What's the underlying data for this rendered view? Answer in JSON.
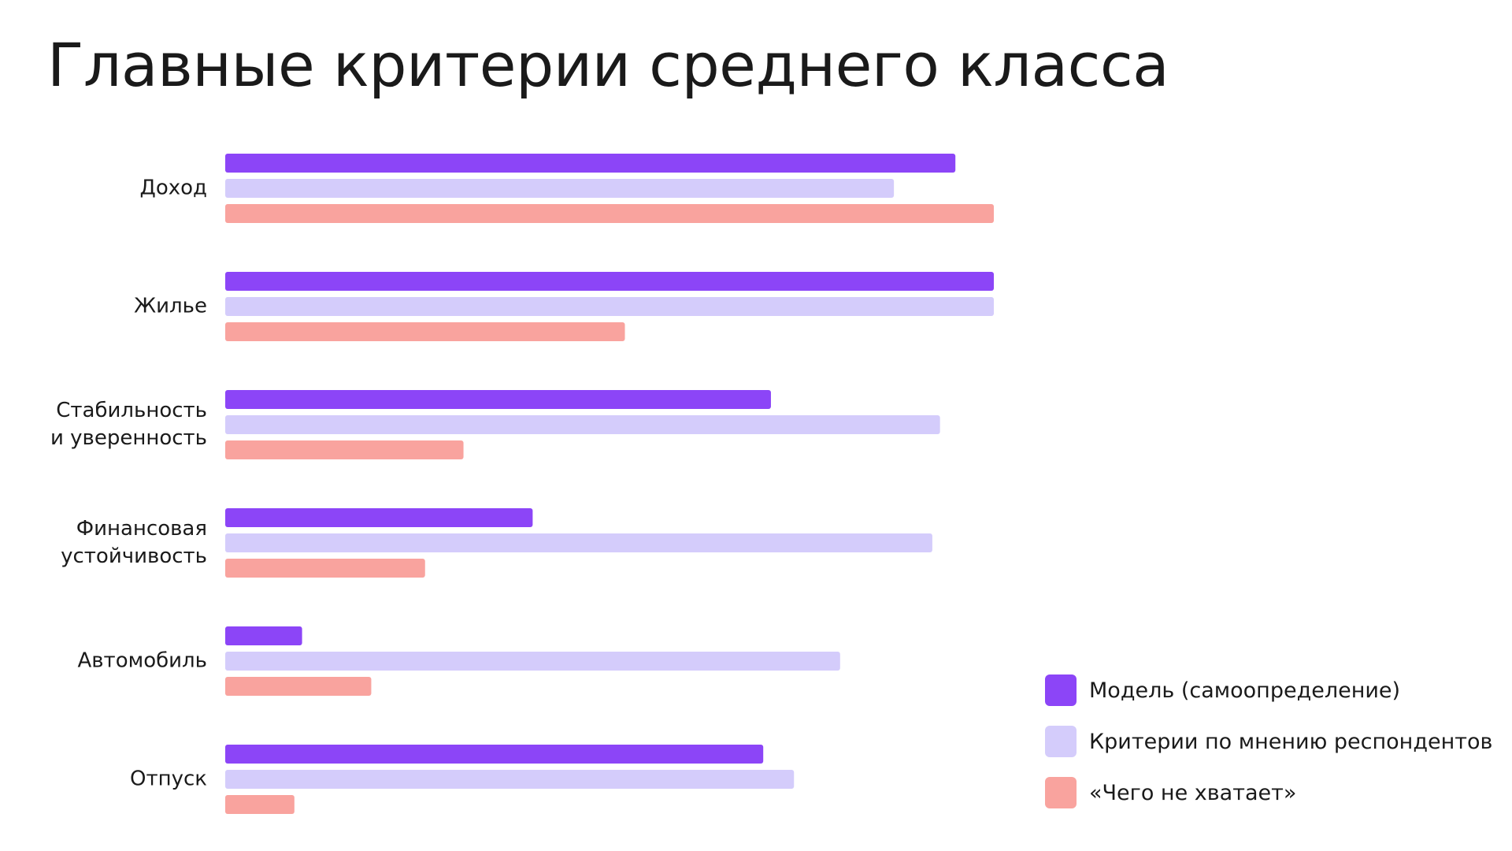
{
  "title": "Главные критерии среднего класса",
  "chart_data": {
    "type": "bar",
    "orientation": "horizontal",
    "title": "Главные критерии среднего класса",
    "categories": [
      [
        "Доход"
      ],
      [
        "Жилье"
      ],
      [
        "Стабильность",
        "и уверенность"
      ],
      [
        "Финансовая",
        "устойчивость"
      ],
      [
        "Автомобиль"
      ],
      [
        "Отпуск"
      ]
    ],
    "series": [
      {
        "name": "Модель (самоопределение)",
        "color": "#8c45f7",
        "values": [
          95,
          100,
          71,
          40,
          10,
          70
        ]
      },
      {
        "name": "Критерии по мнению респондентов",
        "color": "#d4ccfb",
        "values": [
          87,
          100,
          93,
          92,
          80,
          74
        ]
      },
      {
        "name": "«Чего не хватает»",
        "color": "#f9a39e",
        "values": [
          100,
          52,
          31,
          26,
          19,
          9
        ]
      }
    ],
    "xlim": [
      0,
      100
    ],
    "grid": false,
    "axes_visible": false,
    "legend_position": "bottom-right"
  }
}
